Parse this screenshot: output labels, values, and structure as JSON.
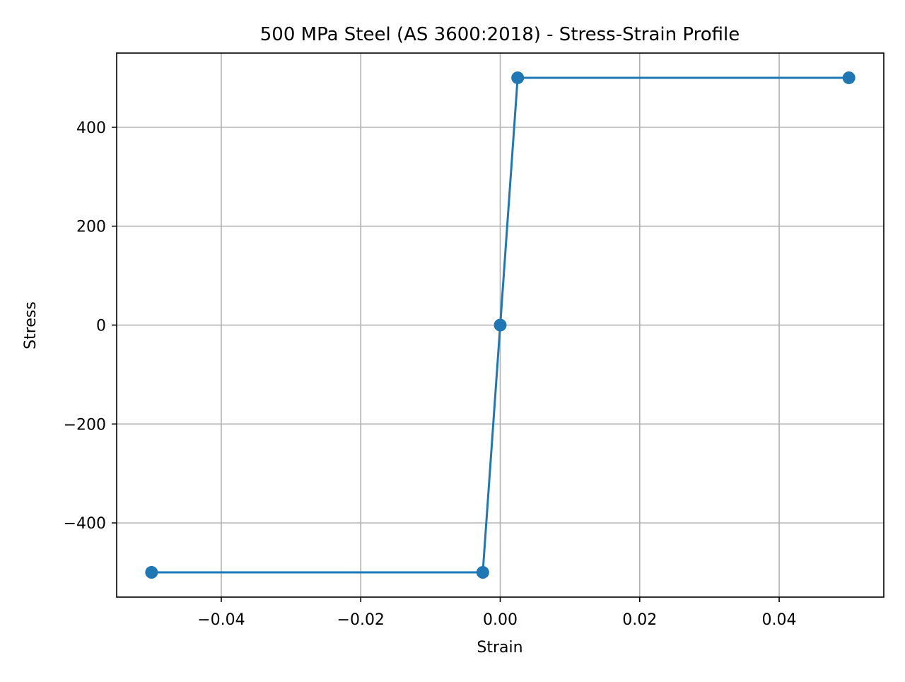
{
  "chart_data": {
    "type": "line",
    "title": "500 MPa Steel (AS 3600:2018) - Stress-Strain Profile",
    "xlabel": "Strain",
    "ylabel": "Stress",
    "xlim": [
      -0.055,
      0.055
    ],
    "ylim": [
      -550,
      550
    ],
    "x_ticks": [
      {
        "value": -0.04,
        "label": "−0.04"
      },
      {
        "value": -0.02,
        "label": "−0.02"
      },
      {
        "value": 0.0,
        "label": "0.00"
      },
      {
        "value": 0.02,
        "label": "0.02"
      },
      {
        "value": 0.04,
        "label": "0.04"
      }
    ],
    "y_ticks": [
      {
        "value": -400,
        "label": "−400"
      },
      {
        "value": -200,
        "label": "−200"
      },
      {
        "value": 0,
        "label": "0"
      },
      {
        "value": 200,
        "label": "200"
      },
      {
        "value": 400,
        "label": "400"
      }
    ],
    "grid": true,
    "series": [
      {
        "color": "#1f77b4",
        "marker": "circle",
        "points": [
          {
            "x": -0.05,
            "y": -500
          },
          {
            "x": -0.0025,
            "y": -500
          },
          {
            "x": 0.0,
            "y": 0
          },
          {
            "x": 0.0025,
            "y": 500
          },
          {
            "x": 0.05,
            "y": 500
          }
        ]
      }
    ]
  }
}
